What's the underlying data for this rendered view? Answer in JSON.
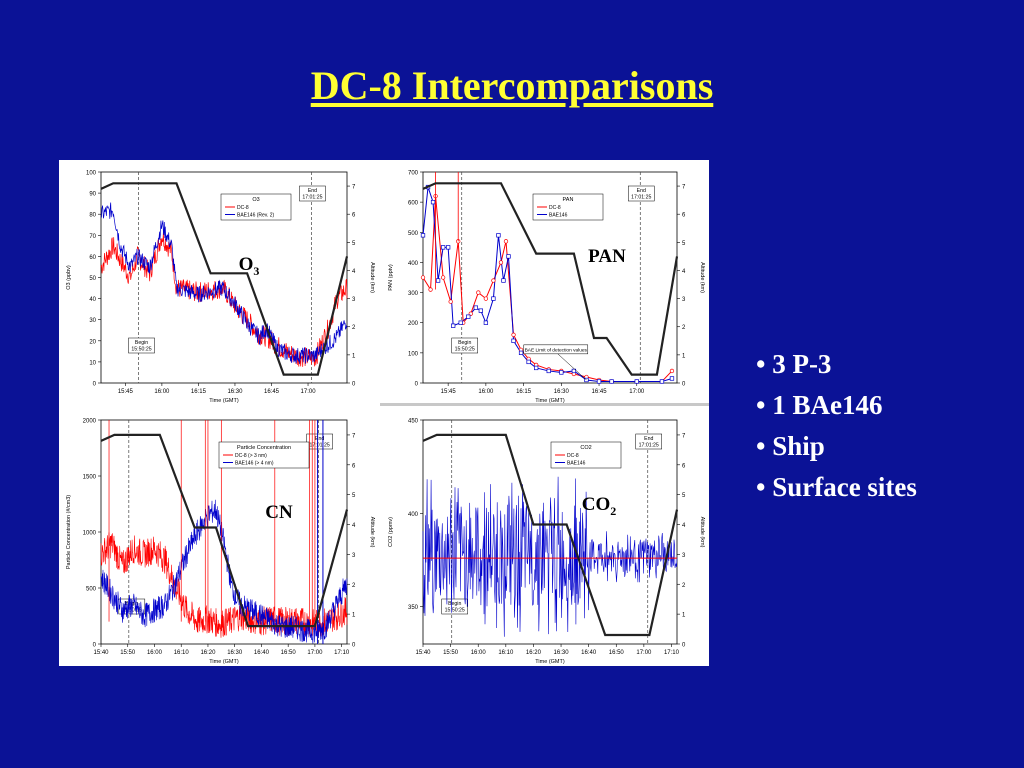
{
  "slide": {
    "title": "DC-8 Intercomparisons",
    "bullets": [
      "• 3 P-3",
      "• 1 BAe146",
      "• Ship",
      "• Surface sites"
    ]
  },
  "colors": {
    "background": "#0b1296",
    "title": "#ffff33",
    "dc8": "#ff0000",
    "bae146": "#0000cc",
    "altitude": "#222222"
  },
  "chart_data": [
    {
      "type": "line",
      "name": "O3",
      "species_label": "O",
      "species_sub": "3",
      "legend_title": "O3",
      "legend": [
        "DC-8",
        "BAE146 (Rev. 2)"
      ],
      "ylabel": "O3  (ppbv)",
      "y2label": "Altitude (km)",
      "xlabel": "Time (GMT)",
      "ylim": [
        0,
        100
      ],
      "y2lim": [
        0,
        7.5
      ],
      "yticks": [
        "0",
        "10",
        "20",
        "30",
        "40",
        "50",
        "60",
        "70",
        "80",
        "90",
        "100"
      ],
      "y2ticks": [
        "0",
        "1",
        "2",
        "3",
        "4",
        "5",
        "6",
        "7"
      ],
      "xticks": [
        "15:45",
        "16:00",
        "16:15",
        "16:30",
        "16:45",
        "17:00"
      ],
      "begin_label": [
        "Begin",
        "15:50:25"
      ],
      "end_label": [
        "End",
        "17:01:25"
      ],
      "begin_x": 50.4,
      "end_x": 121.4,
      "xlim": [
        35,
        136
      ],
      "altitude": [
        [
          35,
          6.9
        ],
        [
          40,
          7.1
        ],
        [
          45,
          7.1
        ],
        [
          66,
          7.1
        ],
        [
          80,
          3.9
        ],
        [
          95,
          3.9
        ],
        [
          110,
          0.3
        ],
        [
          124,
          0.3
        ],
        [
          136,
          4.5
        ]
      ],
      "dc8": [
        [
          35,
          55
        ],
        [
          40,
          65
        ],
        [
          43,
          58
        ],
        [
          47,
          50
        ],
        [
          50,
          60
        ],
        [
          55,
          52
        ],
        [
          60,
          70
        ],
        [
          64,
          62
        ],
        [
          66,
          45
        ],
        [
          75,
          43
        ],
        [
          85,
          45
        ],
        [
          91,
          35
        ],
        [
          95,
          30
        ],
        [
          100,
          23
        ],
        [
          103,
          22
        ],
        [
          107,
          18
        ],
        [
          111,
          15
        ],
        [
          115,
          13
        ],
        [
          120,
          12
        ],
        [
          123,
          12
        ],
        [
          128,
          25
        ],
        [
          132,
          40
        ],
        [
          136,
          45
        ]
      ],
      "bae": [
        [
          35,
          80
        ],
        [
          40,
          82
        ],
        [
          43,
          65
        ],
        [
          47,
          55
        ],
        [
          50,
          60
        ],
        [
          55,
          55
        ],
        [
          60,
          75
        ],
        [
          64,
          65
        ],
        [
          66,
          45
        ],
        [
          75,
          42
        ],
        [
          85,
          45
        ],
        [
          91,
          36
        ],
        [
          95,
          28
        ],
        [
          100,
          22
        ],
        [
          103,
          26
        ],
        [
          107,
          17
        ],
        [
          111,
          14
        ],
        [
          115,
          13
        ],
        [
          120,
          13
        ],
        [
          123,
          13
        ],
        [
          128,
          18
        ],
        [
          132,
          22
        ],
        [
          136,
          30
        ]
      ]
    },
    {
      "type": "line",
      "name": "PAN",
      "species_label": "PAN",
      "species_sub": "",
      "legend_title": "PAN",
      "legend": [
        "DC-8",
        "BAE146"
      ],
      "ylabel": "PAN  (pptv)",
      "y2label": "Altitude (km)",
      "xlabel": "Time (GMT)",
      "ylim": [
        0,
        700
      ],
      "y2lim": [
        0,
        7.5
      ],
      "yticks": [
        "0",
        "100",
        "200",
        "300",
        "400",
        "500",
        "600",
        "700"
      ],
      "y2ticks": [
        "0",
        "1",
        "2",
        "3",
        "4",
        "5",
        "6",
        "7"
      ],
      "xticks": [
        "15:45",
        "16:00",
        "16:15",
        "16:30",
        "16:45",
        "17:00"
      ],
      "begin_label": [
        "Begin",
        "15:50:25"
      ],
      "end_label": [
        "End",
        "17:01:25"
      ],
      "annotation": "BAE Limit of detection values",
      "begin_x": 50.4,
      "end_x": 121.4,
      "xlim": [
        35,
        136
      ],
      "altitude": [
        [
          35,
          6.9
        ],
        [
          40,
          7.1
        ],
        [
          45,
          7.1
        ],
        [
          66,
          7.1
        ],
        [
          80,
          4.6
        ],
        [
          95,
          4.6
        ],
        [
          103,
          1.6
        ],
        [
          108,
          1.6
        ],
        [
          118,
          0.3
        ],
        [
          128,
          0.3
        ],
        [
          136,
          4.5
        ]
      ],
      "dc8": [
        [
          35,
          350
        ],
        [
          38,
          310
        ],
        [
          40,
          620
        ],
        [
          43,
          350
        ],
        [
          46,
          270
        ],
        [
          49,
          470
        ],
        [
          51,
          200
        ],
        [
          54,
          230
        ],
        [
          57,
          300
        ],
        [
          60,
          280
        ],
        [
          63,
          340
        ],
        [
          66,
          400
        ],
        [
          68,
          470
        ],
        [
          71,
          160
        ],
        [
          74,
          110
        ],
        [
          77,
          80
        ],
        [
          80,
          60
        ],
        [
          85,
          45
        ],
        [
          90,
          40
        ],
        [
          95,
          30
        ],
        [
          100,
          20
        ],
        [
          105,
          10
        ],
        [
          110,
          5
        ],
        [
          120,
          5
        ],
        [
          130,
          5
        ],
        [
          134,
          40
        ]
      ],
      "bae": [
        [
          35,
          490
        ],
        [
          37,
          650
        ],
        [
          39,
          600
        ],
        [
          41,
          340
        ],
        [
          43,
          450
        ],
        [
          45,
          450
        ],
        [
          47,
          190
        ],
        [
          50,
          200
        ],
        [
          53,
          220
        ],
        [
          56,
          250
        ],
        [
          58,
          240
        ],
        [
          60,
          200
        ],
        [
          63,
          280
        ],
        [
          65,
          490
        ],
        [
          67,
          340
        ],
        [
          69,
          420
        ],
        [
          71,
          140
        ],
        [
          74,
          100
        ],
        [
          77,
          70
        ],
        [
          80,
          50
        ],
        [
          85,
          40
        ],
        [
          90,
          35
        ],
        [
          95,
          40
        ],
        [
          100,
          10
        ],
        [
          105,
          5
        ],
        [
          110,
          5
        ],
        [
          120,
          5
        ],
        [
          130,
          5
        ],
        [
          134,
          15
        ]
      ]
    },
    {
      "type": "line",
      "name": "CN",
      "species_label": "CN",
      "species_sub": "",
      "legend_title": "Particle Concentration",
      "legend": [
        "DC-8 (> 3 nm)",
        "BAE146 (> 4 nm)"
      ],
      "ylabel": "Particle Concentration  (#/cm3)",
      "y2label": "Altitude (km)",
      "xlabel": "Time (GMT)",
      "ylim": [
        0,
        2000
      ],
      "y2lim": [
        0,
        7.5
      ],
      "yticks": [
        "0",
        "500",
        "1000",
        "1500",
        "2000"
      ],
      "y2ticks": [
        "0",
        "1",
        "2",
        "3",
        "4",
        "5",
        "6",
        "7"
      ],
      "xticks": [
        "15:40",
        "15:50",
        "16:00",
        "16:10",
        "16:20",
        "16:30",
        "16:40",
        "16:50",
        "17:00",
        "17:10"
      ],
      "begin_label": [
        "Begin",
        "15:50:25"
      ],
      "end_label": [
        "End",
        "17:01:25"
      ],
      "begin_x": 50.4,
      "end_x": 121.4,
      "xlim": [
        40,
        132
      ],
      "altitude": [
        [
          40,
          6.8
        ],
        [
          45,
          7.0
        ],
        [
          52,
          7.0
        ],
        [
          62,
          7.0
        ],
        [
          75,
          3.9
        ],
        [
          83,
          3.9
        ],
        [
          95,
          0.6
        ],
        [
          120,
          0.6
        ],
        [
          132,
          4.5
        ]
      ],
      "dc8": [
        [
          40,
          800
        ],
        [
          44,
          900
        ],
        [
          48,
          700
        ],
        [
          52,
          850
        ],
        [
          56,
          800
        ],
        [
          60,
          850
        ],
        [
          64,
          750
        ],
        [
          68,
          500
        ],
        [
          72,
          300
        ],
        [
          76,
          200
        ],
        [
          80,
          220
        ],
        [
          84,
          180
        ],
        [
          88,
          200
        ],
        [
          92,
          250
        ],
        [
          96,
          220
        ],
        [
          100,
          200
        ],
        [
          104,
          220
        ],
        [
          108,
          200
        ],
        [
          112,
          210
        ],
        [
          116,
          200
        ],
        [
          120,
          180
        ],
        [
          124,
          200
        ],
        [
          128,
          250
        ],
        [
          132,
          300
        ]
      ],
      "bae": [
        [
          40,
          600
        ],
        [
          44,
          450
        ],
        [
          48,
          300
        ],
        [
          52,
          350
        ],
        [
          56,
          250
        ],
        [
          60,
          300
        ],
        [
          64,
          350
        ],
        [
          68,
          550
        ],
        [
          72,
          800
        ],
        [
          76,
          1000
        ],
        [
          80,
          1150
        ],
        [
          83,
          1200
        ],
        [
          86,
          900
        ],
        [
          89,
          500
        ],
        [
          92,
          350
        ],
        [
          96,
          300
        ],
        [
          100,
          250
        ],
        [
          104,
          200
        ],
        [
          108,
          150
        ],
        [
          112,
          150
        ],
        [
          116,
          120
        ],
        [
          120,
          110
        ],
        [
          124,
          150
        ],
        [
          128,
          350
        ],
        [
          132,
          550
        ]
      ]
    },
    {
      "type": "line",
      "name": "CO2",
      "species_label": "CO",
      "species_sub": "2",
      "legend_title": "CO2",
      "legend": [
        "DC-8",
        "BAE146"
      ],
      "ylabel": "CO2  (ppmv)",
      "y2label": "Altitude (km)",
      "xlabel": "Time (GMT)",
      "ylim": [
        330,
        450
      ],
      "y2lim": [
        0,
        7.5
      ],
      "yticks": [
        "350",
        "400",
        "450"
      ],
      "y2ticks": [
        "0",
        "1",
        "2",
        "3",
        "4",
        "5",
        "6",
        "7"
      ],
      "xticks": [
        "15:40",
        "15:50",
        "16:00",
        "16:10",
        "16:20",
        "16:30",
        "16:40",
        "16:50",
        "17:00",
        "17:10"
      ],
      "begin_label": [
        "Begin",
        "15:50:25"
      ],
      "end_label": [
        "End",
        "17:01:25"
      ],
      "begin_x": 50.4,
      "end_x": 121.4,
      "xlim": [
        40,
        132
      ],
      "altitude": [
        [
          40,
          6.8
        ],
        [
          45,
          7.0
        ],
        [
          52,
          7.0
        ],
        [
          70,
          7.0
        ],
        [
          80,
          4.0
        ],
        [
          92,
          4.0
        ],
        [
          106,
          0.3
        ],
        [
          122,
          0.3
        ],
        [
          132,
          4.5
        ]
      ],
      "dc8_level": 376,
      "bae_base": 377
    }
  ]
}
